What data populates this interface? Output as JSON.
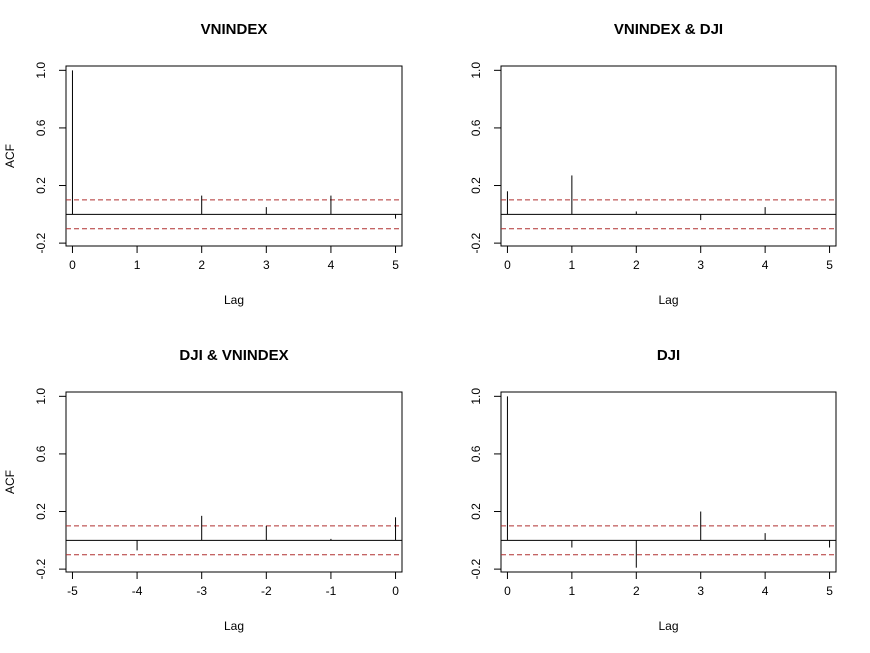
{
  "chart_data": [
    {
      "type": "bar",
      "title": "VNINDEX",
      "xlabel": "Lag",
      "ylabel": "ACF",
      "xlim": [
        -0.1,
        5.1
      ],
      "ylim": [
        -0.22,
        1.03
      ],
      "xticks": [
        0,
        1,
        2,
        3,
        4,
        5
      ],
      "yticks": [
        -0.2,
        0.2,
        0.6,
        1.0
      ],
      "ytick_labels": [
        "-0.2",
        "0.2",
        "0.6",
        "1.0"
      ],
      "ci": 0.1,
      "x": [
        0,
        1,
        2,
        3,
        4,
        5
      ],
      "values": [
        1.0,
        0.0,
        0.13,
        0.05,
        0.13,
        -0.03
      ]
    },
    {
      "type": "bar",
      "title": "VNINDEX & DJI",
      "xlabel": "Lag",
      "ylabel": "",
      "xlim": [
        -0.1,
        5.1
      ],
      "ylim": [
        -0.22,
        1.03
      ],
      "xticks": [
        0,
        1,
        2,
        3,
        4,
        5
      ],
      "yticks": [
        -0.2,
        0.2,
        0.6,
        1.0
      ],
      "ytick_labels": [
        "-0.2",
        "0.2",
        "0.6",
        "1.0"
      ],
      "ci": 0.1,
      "x": [
        0,
        1,
        2,
        3,
        4,
        5
      ],
      "values": [
        0.16,
        0.27,
        0.02,
        -0.04,
        0.05,
        0.0
      ]
    },
    {
      "type": "bar",
      "title": "DJI & VNINDEX",
      "xlabel": "Lag",
      "ylabel": "ACF",
      "xlim": [
        -5.1,
        0.1
      ],
      "ylim": [
        -0.22,
        1.03
      ],
      "xticks": [
        -5,
        -4,
        -3,
        -2,
        -1,
        0
      ],
      "yticks": [
        -0.2,
        0.2,
        0.6,
        1.0
      ],
      "ytick_labels": [
        "-0.2",
        "0.2",
        "0.6",
        "1.0"
      ],
      "ci": 0.1,
      "x": [
        -5,
        -4,
        -3,
        -2,
        -1,
        0
      ],
      "values": [
        0.0,
        -0.07,
        0.17,
        0.1,
        0.01,
        0.16
      ]
    },
    {
      "type": "bar",
      "title": "DJI",
      "xlabel": "Lag",
      "ylabel": "",
      "xlim": [
        -0.1,
        5.1
      ],
      "ylim": [
        -0.22,
        1.03
      ],
      "xticks": [
        0,
        1,
        2,
        3,
        4,
        5
      ],
      "yticks": [
        -0.2,
        0.2,
        0.6,
        1.0
      ],
      "ytick_labels": [
        "-0.2",
        "0.2",
        "0.6",
        "1.0"
      ],
      "ci": 0.1,
      "x": [
        0,
        1,
        2,
        3,
        4,
        5
      ],
      "values": [
        1.0,
        -0.05,
        -0.19,
        0.2,
        0.05,
        -0.05
      ]
    }
  ],
  "colors": {
    "bars": "#000000",
    "ci_line": "#b03030",
    "zero_line": "#000000"
  }
}
